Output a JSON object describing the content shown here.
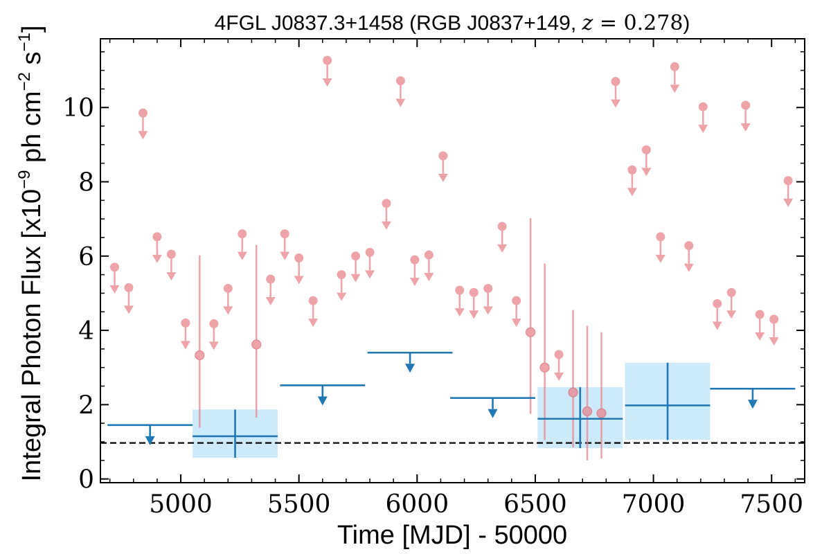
{
  "chart_data": {
    "type": "scatter",
    "title": {
      "prefix": "4FGL J0837.3+1458 (RGB J0837+149, ",
      "z_symbol": "z",
      "z_eq": " = 0.278",
      "suffix": ")"
    },
    "xlabel": "Time [MJD] - 50000",
    "ylabel": {
      "prefix": "Integral Photon Flux [x10",
      "exp1": "−9",
      "mid": " ph cm",
      "exp2": "−2",
      "mid2": " s",
      "exp3": "−1",
      "suffix": "]"
    },
    "xlim": [
      4660,
      7640
    ],
    "ylim": [
      -0.1,
      11.85
    ],
    "x_ticks": [
      5000,
      5500,
      6000,
      6500,
      7000,
      7500
    ],
    "x_tick_labels": [
      "5000",
      "5500",
      "6000",
      "6500",
      "7000",
      "7500"
    ],
    "y_ticks": [
      0,
      2,
      4,
      6,
      8,
      10
    ],
    "y_tick_labels": [
      "0",
      "2",
      "4",
      "6",
      "8",
      "10"
    ],
    "reference_line": 0.97,
    "colors": {
      "short_bin": "#e8858c",
      "long_bin": "#1f77b4",
      "error_box": "#cdeafa",
      "reference": "#000000"
    },
    "short_bin_upper_limits": [
      [
        4720,
        5.7
      ],
      [
        4780,
        5.15
      ],
      [
        4840,
        9.85
      ],
      [
        4900,
        6.52
      ],
      [
        4960,
        6.05
      ],
      [
        5020,
        4.2
      ],
      [
        5140,
        4.18
      ],
      [
        5200,
        5.13
      ],
      [
        5260,
        6.6
      ],
      [
        5380,
        5.38
      ],
      [
        5440,
        6.6
      ],
      [
        5500,
        5.95
      ],
      [
        5560,
        4.8
      ],
      [
        5620,
        11.27
      ],
      [
        5680,
        5.5
      ],
      [
        5740,
        6.0
      ],
      [
        5800,
        6.1
      ],
      [
        5870,
        7.42
      ],
      [
        5930,
        10.72
      ],
      [
        5990,
        5.9
      ],
      [
        6050,
        6.03
      ],
      [
        6110,
        8.7
      ],
      [
        6180,
        5.08
      ],
      [
        6240,
        5.02
      ],
      [
        6300,
        5.13
      ],
      [
        6360,
        6.8
      ],
      [
        6420,
        4.8
      ],
      [
        6600,
        3.35
      ],
      [
        6840,
        10.7
      ],
      [
        6910,
        8.32
      ],
      [
        6970,
        8.86
      ],
      [
        7030,
        6.52
      ],
      [
        7090,
        11.1
      ],
      [
        7150,
        6.28
      ],
      [
        7210,
        10.02
      ],
      [
        7270,
        4.72
      ],
      [
        7330,
        5.02
      ],
      [
        7390,
        10.06
      ],
      [
        7450,
        4.43
      ],
      [
        7510,
        4.3
      ],
      [
        7570,
        8.03
      ]
    ],
    "short_bin_detections": [
      [
        5080,
        3.33,
        1.38,
        6.02
      ],
      [
        5320,
        3.62,
        1.65,
        6.3
      ],
      [
        6480,
        3.95,
        1.75,
        7.02
      ],
      [
        6540,
        3.0,
        1.05,
        5.8
      ],
      [
        6660,
        2.33,
        0.85,
        4.55
      ],
      [
        6720,
        1.82,
        0.5,
        4.12
      ],
      [
        6780,
        1.77,
        0.55,
        3.95
      ]
    ],
    "long_bin_upper_limits": [
      [
        4690,
        5050,
        1.45
      ],
      [
        5420,
        5780,
        2.52
      ],
      [
        5790,
        6150,
        3.4
      ],
      [
        6140,
        6500,
        2.18
      ],
      [
        7240,
        7600,
        2.43
      ]
    ],
    "long_bin_detections": [
      [
        5050,
        5410,
        1.15,
        0.57,
        1.87
      ],
      [
        6510,
        6870,
        1.62,
        0.83,
        2.47
      ],
      [
        6880,
        7240,
        1.98,
        1.05,
        3.13
      ]
    ]
  }
}
